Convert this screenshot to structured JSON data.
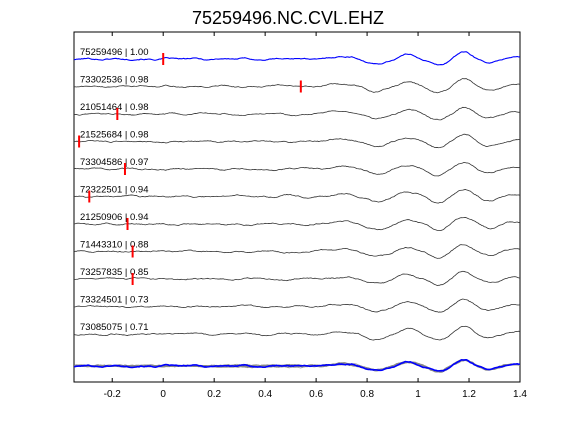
{
  "chart_data": {
    "type": "line",
    "title": "75259496.NC.CVL.EHZ",
    "xlabel": "",
    "ylabel": "",
    "xlim": [
      -0.35,
      1.4
    ],
    "x_ticks": [
      "-0.2",
      "0",
      "0.2",
      "0.4",
      "0.6",
      "0.8",
      "1",
      "1.2",
      "1.4"
    ],
    "x_tick_values": [
      -0.2,
      0,
      0.2,
      0.4,
      0.6,
      0.8,
      1.0,
      1.2,
      1.4
    ],
    "grid": false,
    "colors": {
      "reference_trace": "#0000ff",
      "other_traces": "#333333",
      "stack_traces": "#888888",
      "pick_marker": "#ff0000"
    },
    "series": [
      {
        "name": "75259496 | 1.00",
        "pick_time": 0.0,
        "reference": true
      },
      {
        "name": "73302536 | 0.98",
        "pick_time": 0.54
      },
      {
        "name": "21051464 | 0.98",
        "pick_time": -0.18
      },
      {
        "name": "21525684 | 0.98",
        "pick_time": -0.33
      },
      {
        "name": "73304586 | 0.97",
        "pick_time": -0.15
      },
      {
        "name": "72322501 | 0.94",
        "pick_time": -0.29
      },
      {
        "name": "21250906 | 0.94",
        "pick_time": -0.14
      },
      {
        "name": "71443310 | 0.88",
        "pick_time": -0.12
      },
      {
        "name": "73257835 | 0.85",
        "pick_time": -0.12
      },
      {
        "name": "73324501 | 0.73",
        "pick_time": null
      },
      {
        "name": "73085075 | 0.71",
        "pick_time": null
      }
    ],
    "stack_panel": {
      "trace_count": 11
    }
  }
}
